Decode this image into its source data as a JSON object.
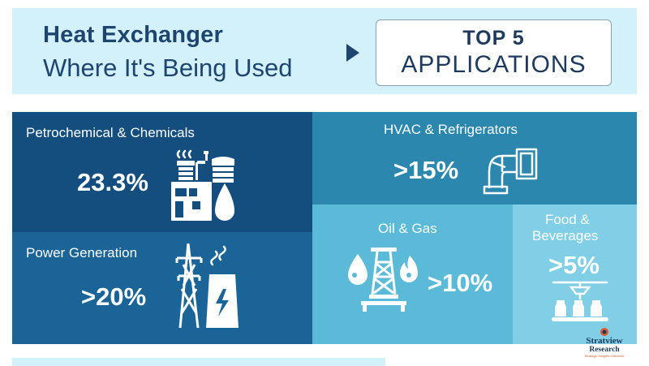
{
  "header": {
    "title_main": "Heat Exchanger",
    "title_sub": "Where It's Being Used",
    "badge_line1": "TOP 5",
    "badge_line2": "APPLICATIONS"
  },
  "applications": [
    {
      "label": "Petrochemical & Chemicals",
      "value": "23.3%",
      "icon": "petrochemical-plant-icon",
      "color": "#134e7f"
    },
    {
      "label": "Power Generation",
      "value": ">20%",
      "icon": "power-tower-icon",
      "color": "#1b6497"
    },
    {
      "label": "HVAC & Refrigerators",
      "value": ">15%",
      "icon": "hvac-duct-icon",
      "color": "#2b87ae"
    },
    {
      "label": "Oil & Gas",
      "value": ">10%",
      "icon": "oil-rig-icon",
      "color": "#5bbad8"
    },
    {
      "label_line1": "Food &",
      "label_line2": "Beverages",
      "value": ">5%",
      "icon": "bottling-line-icon",
      "color": "#80cfe6"
    }
  ],
  "logo": {
    "name": "Stratview",
    "sub": "Research",
    "tagline": "Strategic Insights Delivered"
  }
}
